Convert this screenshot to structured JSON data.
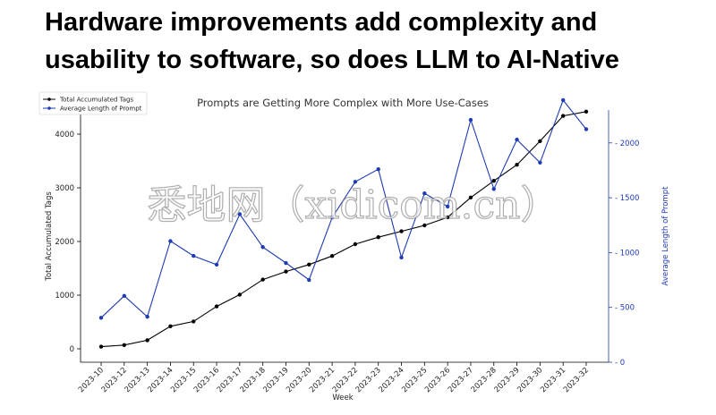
{
  "headline": "Hardware improvements add complexity and usability to software, so does LLM to AI-Native",
  "watermark": "悉地网（xidicom.cn）",
  "chart_data": {
    "type": "line",
    "title": "Prompts are Getting More Complex with More Use-Cases",
    "xlabel": "Week",
    "ylabel": "Total Accumulated Tags",
    "y2label": "Average Length of Prompt",
    "categories": [
      "2023-10",
      "2023-12",
      "2023-13",
      "2023-14",
      "2023-15",
      "2023-16",
      "2023-17",
      "2023-18",
      "2023-19",
      "2023-20",
      "2023-21",
      "2023-22",
      "2023-23",
      "2023-24",
      "2023-25",
      "2023-26",
      "2023-27",
      "2023-28",
      "2023-29",
      "2023-30",
      "2023-31",
      "2023-32"
    ],
    "ylim": [
      -250,
      4450
    ],
    "y2lim": [
      0,
      2300
    ],
    "yticks": [
      0,
      1000,
      2000,
      3000,
      4000
    ],
    "y2ticks": [
      0,
      500,
      1000,
      1500,
      2000
    ],
    "legend_position": "top-left",
    "series": [
      {
        "name": "Total Accumulated Tags",
        "axis": "left",
        "color": "#000000",
        "values": [
          40,
          70,
          160,
          420,
          510,
          790,
          1010,
          1290,
          1440,
          1570,
          1730,
          1950,
          2080,
          2190,
          2300,
          2450,
          2820,
          3130,
          3430,
          3870,
          4340,
          4420
        ]
      },
      {
        "name": "Average Length of Prompt",
        "axis": "right",
        "color": "#1f3bb3",
        "values": [
          405,
          605,
          415,
          1105,
          970,
          890,
          1350,
          1050,
          905,
          750,
          1320,
          1645,
          1760,
          955,
          1540,
          1420,
          2210,
          1580,
          2030,
          1820,
          2390,
          2125
        ]
      }
    ]
  }
}
